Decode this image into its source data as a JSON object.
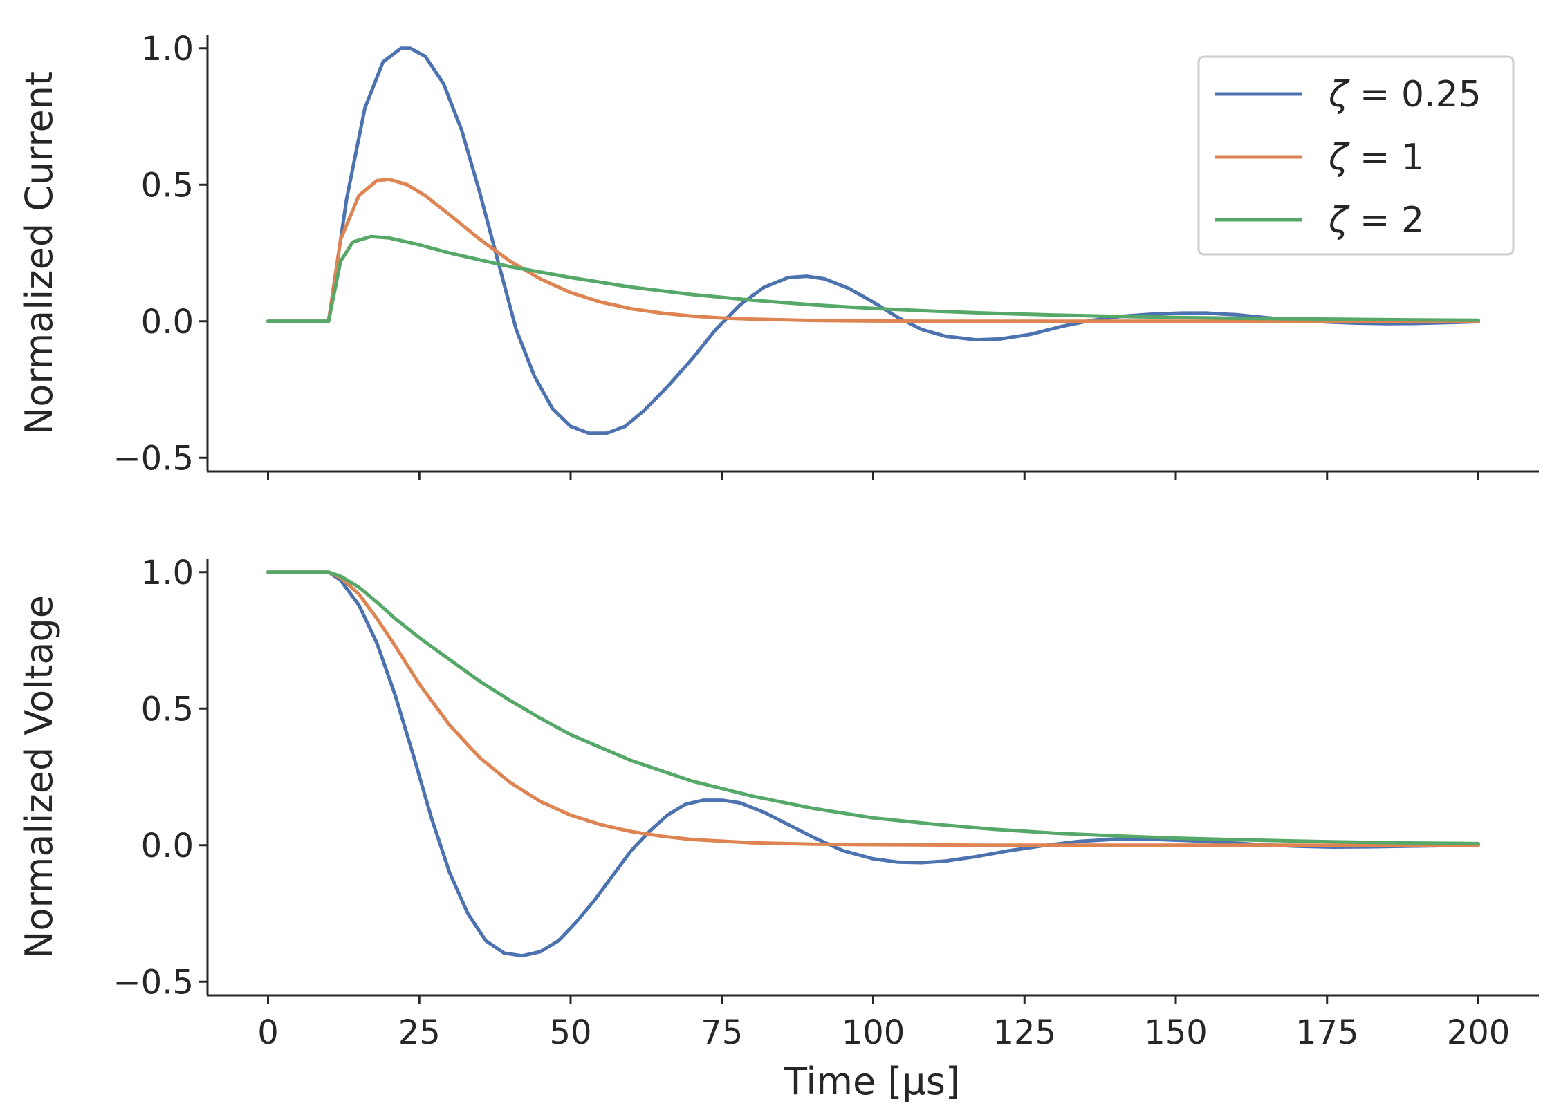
{
  "chart_data": {
    "type": "line",
    "layout": "two stacked panels, shared x axis",
    "colors": {
      "zeta_0.25": "#4c72b0",
      "zeta_1": "#dd8452",
      "zeta_2": "#55a868",
      "axis": "#262626"
    },
    "legend": {
      "placement": "top-right of upper panel",
      "entries": [
        {
          "symbol": "ζ",
          "eq": " = ",
          "value": "0.25",
          "color": "#4c72b0"
        },
        {
          "symbol": "ζ",
          "eq": " = ",
          "value": "1",
          "color": "#dd8452"
        },
        {
          "symbol": "ζ",
          "eq": " = ",
          "value": "2",
          "color": "#55a868"
        }
      ]
    },
    "xlabel": "Time [μs]",
    "xlim": [
      -10,
      210
    ],
    "xticks": [
      0,
      25,
      50,
      75,
      100,
      125,
      150,
      175,
      200
    ],
    "xtick_labels": [
      "0",
      "25",
      "50",
      "75",
      "100",
      "125",
      "150",
      "175",
      "200"
    ],
    "panels": [
      {
        "name": "current",
        "ylabel": "Normalized Current",
        "ylim": [
          -0.55,
          1.05
        ],
        "yticks": [
          -0.5,
          0.0,
          0.5,
          1.0
        ],
        "ytick_labels": [
          "−0.5",
          "0.0",
          "0.5",
          "1.0"
        ],
        "series": [
          {
            "name": "ζ = 0.25",
            "color": "#4c72b0",
            "x": [
              0,
              10,
              13,
              16,
              19,
              22,
              23.5,
              26,
              29,
              32,
              35,
              38,
              41,
              44,
              47,
              50,
              53,
              56,
              59,
              62,
              66,
              70,
              74,
              78,
              82,
              86,
              89,
              92,
              96,
              100,
              104,
              108,
              112,
              117,
              121,
              126,
              131,
              136,
              141,
              146,
              151,
              155,
              160,
              165,
              170,
              175,
              180,
              185,
              190,
              195,
              200
            ],
            "y": [
              0,
              0,
              0.45,
              0.78,
              0.95,
              1.0,
              1.0,
              0.97,
              0.87,
              0.7,
              0.47,
              0.22,
              -0.03,
              -0.2,
              -0.32,
              -0.385,
              -0.41,
              -0.41,
              -0.385,
              -0.33,
              -0.24,
              -0.14,
              -0.03,
              0.06,
              0.125,
              0.16,
              0.165,
              0.155,
              0.12,
              0.07,
              0.015,
              -0.03,
              -0.055,
              -0.068,
              -0.065,
              -0.048,
              -0.02,
              0.003,
              0.018,
              0.026,
              0.03,
              0.03,
              0.024,
              0.013,
              0.004,
              -0.003,
              -0.007,
              -0.009,
              -0.008,
              -0.005,
              -0.002
            ]
          },
          {
            "name": "ζ = 1",
            "color": "#dd8452",
            "x": [
              0,
              10,
              12,
              15,
              18,
              20,
              23,
              26,
              30,
              35,
              40,
              45,
              50,
              55,
              60,
              65,
              70,
              75,
              80,
              90,
              100,
              110,
              120,
              140,
              160,
              180,
              200
            ],
            "y": [
              0,
              0,
              0.3,
              0.46,
              0.515,
              0.52,
              0.5,
              0.46,
              0.39,
              0.3,
              0.22,
              0.155,
              0.105,
              0.07,
              0.046,
              0.03,
              0.019,
              0.012,
              0.008,
              0.003,
              0.001,
              0,
              0,
              0,
              0,
              0,
              0
            ]
          },
          {
            "name": "ζ = 2",
            "color": "#55a868",
            "x": [
              0,
              10,
              12,
              14,
              17,
              20,
              25,
              30,
              40,
              50,
              60,
              70,
              80,
              90,
              100,
              110,
              120,
              130,
              140,
              150,
              160,
              170,
              180,
              190,
              200
            ],
            "y": [
              0,
              0,
              0.22,
              0.29,
              0.31,
              0.305,
              0.28,
              0.25,
              0.2,
              0.16,
              0.125,
              0.098,
              0.077,
              0.06,
              0.047,
              0.037,
              0.029,
              0.023,
              0.018,
              0.014,
              0.011,
              0.009,
              0.007,
              0.005,
              0.004
            ]
          }
        ]
      },
      {
        "name": "voltage",
        "ylabel": "Normalized Voltage",
        "ylim": [
          -0.55,
          1.05
        ],
        "yticks": [
          -0.5,
          0.0,
          0.5,
          1.0
        ],
        "ytick_labels": [
          "−0.5",
          "0.0",
          "0.5",
          "1.0"
        ],
        "series": [
          {
            "name": "ζ = 0.25",
            "color": "#4c72b0",
            "x": [
              0,
              10,
              12,
              15,
              18,
              21,
              24,
              27,
              30,
              33,
              36,
              39,
              42,
              45,
              48,
              51,
              54,
              57,
              60,
              63,
              66,
              69,
              72,
              75,
              78,
              82,
              86,
              90,
              95,
              100,
              104,
              108,
              112,
              117,
              122,
              128,
              134,
              140,
              146,
              152,
              158,
              164,
              170,
              176,
              182,
              188,
              194,
              200
            ],
            "y": [
              1.0,
              1.0,
              0.97,
              0.88,
              0.74,
              0.55,
              0.33,
              0.1,
              -0.1,
              -0.25,
              -0.35,
              -0.395,
              -0.405,
              -0.39,
              -0.35,
              -0.28,
              -0.2,
              -0.11,
              -0.02,
              0.05,
              0.11,
              0.15,
              0.165,
              0.165,
              0.155,
              0.12,
              0.075,
              0.03,
              -0.02,
              -0.05,
              -0.062,
              -0.064,
              -0.058,
              -0.042,
              -0.022,
              -0.002,
              0.014,
              0.022,
              0.022,
              0.017,
              0.01,
              0.002,
              -0.004,
              -0.007,
              -0.006,
              -0.004,
              -0.002,
              0.0
            ]
          },
          {
            "name": "ζ = 1",
            "color": "#dd8452",
            "x": [
              0,
              10,
              12,
              15,
              18,
              21,
              25,
              30,
              35,
              40,
              45,
              50,
              55,
              60,
              65,
              70,
              80,
              90,
              100,
              120,
              140,
              160,
              180,
              200
            ],
            "y": [
              1.0,
              1.0,
              0.98,
              0.92,
              0.83,
              0.73,
              0.59,
              0.44,
              0.32,
              0.23,
              0.16,
              0.11,
              0.075,
              0.05,
              0.033,
              0.021,
              0.009,
              0.004,
              0.002,
              0,
              0,
              0,
              0,
              0
            ]
          },
          {
            "name": "ζ = 2",
            "color": "#55a868",
            "x": [
              0,
              10,
              12,
              15,
              18,
              21,
              25,
              30,
              35,
              40,
              45,
              50,
              60,
              70,
              80,
              90,
              100,
              110,
              120,
              130,
              140,
              150,
              160,
              170,
              180,
              190,
              200
            ],
            "y": [
              1.0,
              1.0,
              0.985,
              0.945,
              0.89,
              0.83,
              0.76,
              0.68,
              0.6,
              0.53,
              0.465,
              0.405,
              0.31,
              0.235,
              0.18,
              0.135,
              0.1,
              0.077,
              0.058,
              0.044,
              0.034,
              0.026,
              0.02,
              0.015,
              0.011,
              0.008,
              0.006
            ]
          }
        ]
      }
    ]
  }
}
